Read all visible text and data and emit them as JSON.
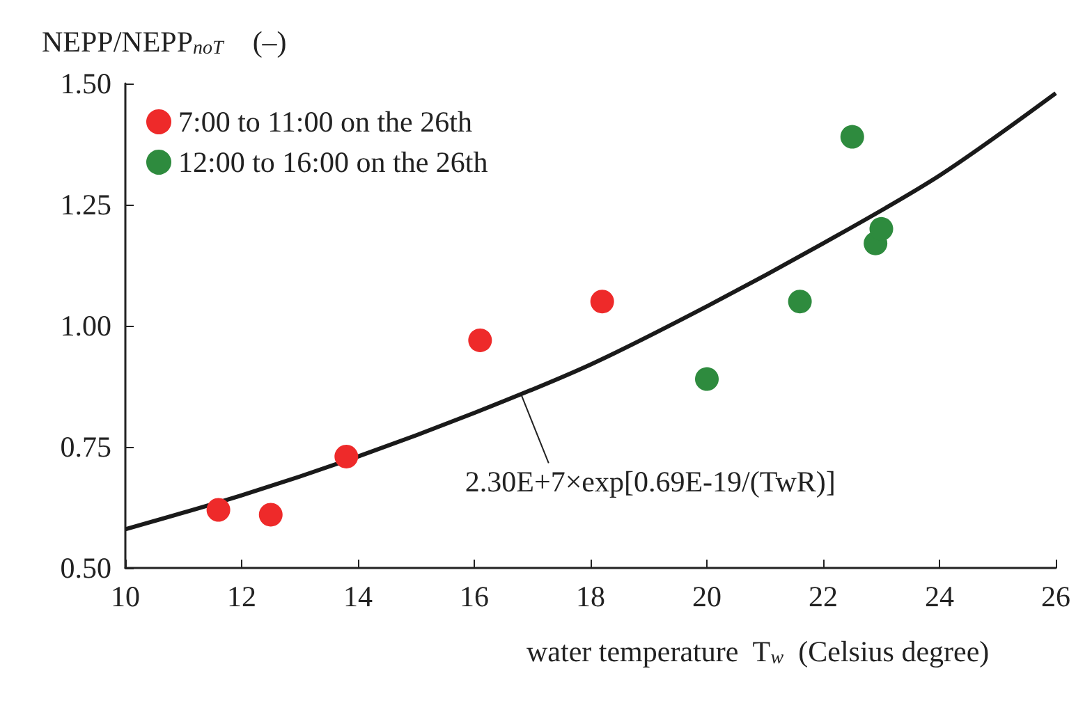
{
  "chart_data": {
    "type": "scatter",
    "xlabel": "water temperature  T$_{w}$  (Celsius degree)",
    "ylabel": "NEPP/NEPP$_{noT}$    (–)",
    "xlim": [
      10,
      26
    ],
    "xticks": [
      10,
      12,
      14,
      16,
      18,
      20,
      22,
      24,
      26
    ],
    "ylim": [
      0.5,
      1.5
    ],
    "yticks": [
      {
        "value": 0.5,
        "label": "0.50"
      },
      {
        "value": 0.75,
        "label": "0.75"
      },
      {
        "value": 1,
        "label": "1.00"
      },
      {
        "value": 1.25,
        "label": "1.25"
      },
      {
        "value": 1.5,
        "label": "1.50"
      }
    ],
    "grid": false,
    "legend": "top left",
    "series": [
      {
        "name": "7:00 to 11:00 on the 26th",
        "marker": "circle",
        "color": "#ee2a2a",
        "x": [
          11.6,
          12.5,
          13.8,
          16.1,
          18.2
        ],
        "values": [
          0.62,
          0.61,
          0.73,
          0.97,
          1.05
        ]
      },
      {
        "name": "12:00 to 16:00 on the 26th",
        "marker": "circle",
        "color": "#2e8b3e",
        "x": [
          20.0,
          21.6,
          22.5,
          22.9,
          23.0
        ],
        "values": [
          0.89,
          1.05,
          1.39,
          1.17,
          1.2
        ]
      },
      {
        "type": "line",
        "marker": "none",
        "color": "#1a1a1a",
        "x": [
          10,
          12,
          14,
          16,
          18,
          20,
          22,
          24,
          26
        ],
        "values": [
          0.58,
          0.65,
          0.73,
          0.82,
          0.92,
          1.04,
          1.17,
          1.31,
          1.48
        ]
      }
    ],
    "annotations": [
      {
        "text": "2.30E+7×exp[0.69E-19/(TwR)]",
        "x": 16.8,
        "y": 0.86
      }
    ]
  }
}
